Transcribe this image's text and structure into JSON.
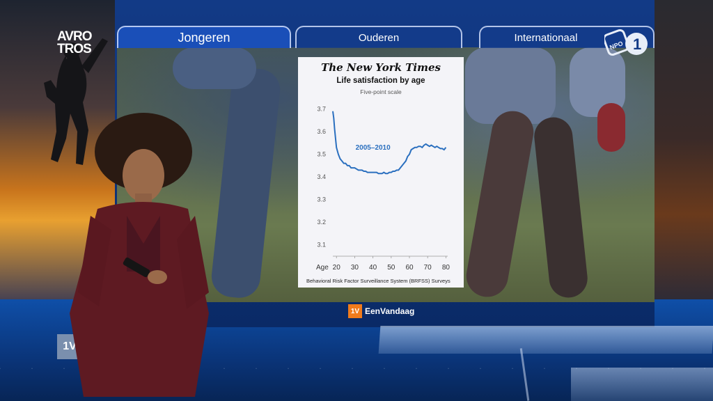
{
  "broadcaster_logo": {
    "line1": "AVRO",
    "line2": "TROS"
  },
  "tabs": [
    {
      "label": "Jongeren",
      "active": true
    },
    {
      "label": "Ouderen",
      "active": false
    },
    {
      "label": "Internationaal",
      "active": false
    }
  ],
  "channel_logo": {
    "text": "NPO",
    "number": "1"
  },
  "chart_data": {
    "type": "line",
    "publisher": "The New York Times",
    "title": "Life satisfaction by age",
    "subtitle": "Five-point scale",
    "xlabel": "Age",
    "x_ticks": [
      20,
      30,
      40,
      50,
      60,
      70,
      80
    ],
    "y_ticks": [
      3.1,
      3.2,
      3.3,
      3.4,
      3.5,
      3.6,
      3.7
    ],
    "xlim": [
      18,
      81
    ],
    "ylim": [
      3.05,
      3.72
    ],
    "annotation": "2005–2010",
    "source": "Behavioral Risk Factor Surveillance System (BRFSS) Surveys",
    "line_color": "#2a6fbf",
    "series": [
      {
        "x": [
          18,
          18.5,
          19,
          19.5,
          20,
          21,
          22,
          23,
          24,
          25,
          26,
          27,
          28,
          29,
          30,
          31,
          32,
          33,
          34,
          35,
          36,
          37,
          38,
          39,
          40,
          41,
          42,
          43,
          44,
          45,
          46,
          47,
          48,
          49,
          50,
          51,
          52,
          53,
          54,
          55,
          56,
          57,
          58,
          59,
          60,
          61,
          62,
          63,
          64,
          65,
          66,
          67,
          68,
          69,
          70,
          71,
          72,
          73,
          74,
          75,
          76,
          77,
          78,
          79,
          80
        ],
        "y": [
          3.69,
          3.66,
          3.61,
          3.57,
          3.53,
          3.5,
          3.48,
          3.47,
          3.46,
          3.46,
          3.45,
          3.45,
          3.44,
          3.44,
          3.44,
          3.435,
          3.43,
          3.43,
          3.43,
          3.425,
          3.425,
          3.42,
          3.42,
          3.42,
          3.42,
          3.42,
          3.42,
          3.415,
          3.415,
          3.415,
          3.42,
          3.415,
          3.415,
          3.42,
          3.42,
          3.425,
          3.425,
          3.43,
          3.43,
          3.44,
          3.45,
          3.46,
          3.47,
          3.49,
          3.5,
          3.52,
          3.525,
          3.53,
          3.53,
          3.535,
          3.535,
          3.53,
          3.54,
          3.545,
          3.54,
          3.535,
          3.54,
          3.535,
          3.53,
          3.535,
          3.53,
          3.525,
          3.525,
          3.52,
          3.53
        ]
      }
    ]
  },
  "lower_third": {
    "badge": "1V",
    "program": "EenVandaag"
  },
  "floor_badge": "1V"
}
